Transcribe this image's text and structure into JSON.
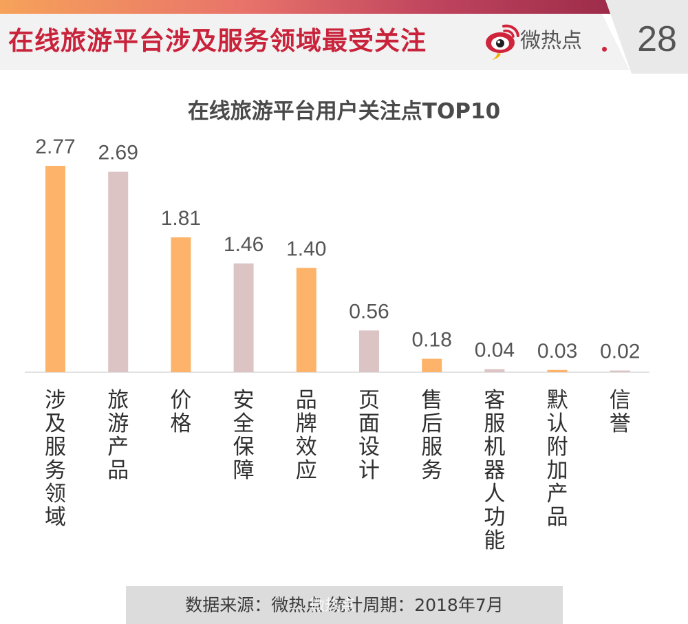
{
  "header": {
    "title": "在线旅游平台涉及服务领域最受关注",
    "logo_text": "微热点",
    "page_number": "28"
  },
  "footer": {
    "text": "数据来源：微热点   统计周期：2018年7月",
    "watermark": "微热点"
  },
  "colors": {
    "accent": "#c9233b",
    "bar_orange": "#fdb46a",
    "bar_pink": "#dcc4c4"
  },
  "icons": [
    "weibo-eye-logo-icon"
  ],
  "chart_data": {
    "type": "bar",
    "title": "在线旅游平台用户关注点TOP10",
    "categories": [
      "涉及服务领域",
      "旅游产品",
      "价格",
      "安全保障",
      "品牌效应",
      "页面设计",
      "售后服务",
      "客服机器人功能",
      "默认附加产品",
      "信誉"
    ],
    "values": [
      2.77,
      2.69,
      1.81,
      1.46,
      1.4,
      0.56,
      0.18,
      0.04,
      0.03,
      0.02
    ],
    "value_labels": [
      "2.77",
      "2.69",
      "1.81",
      "1.46",
      "1.40",
      "0.56",
      "0.18",
      "0.04",
      "0.03",
      "0.02"
    ],
    "bar_colors": [
      "#fdb46a",
      "#dcc4c4",
      "#fdb46a",
      "#dcc4c4",
      "#fdb46a",
      "#dcc4c4",
      "#fdb46a",
      "#dcc4c4",
      "#fdb46a",
      "#dcc4c4"
    ],
    "ylim": [
      0,
      2.77
    ],
    "grid": false,
    "xlabel": "",
    "ylabel": ""
  }
}
